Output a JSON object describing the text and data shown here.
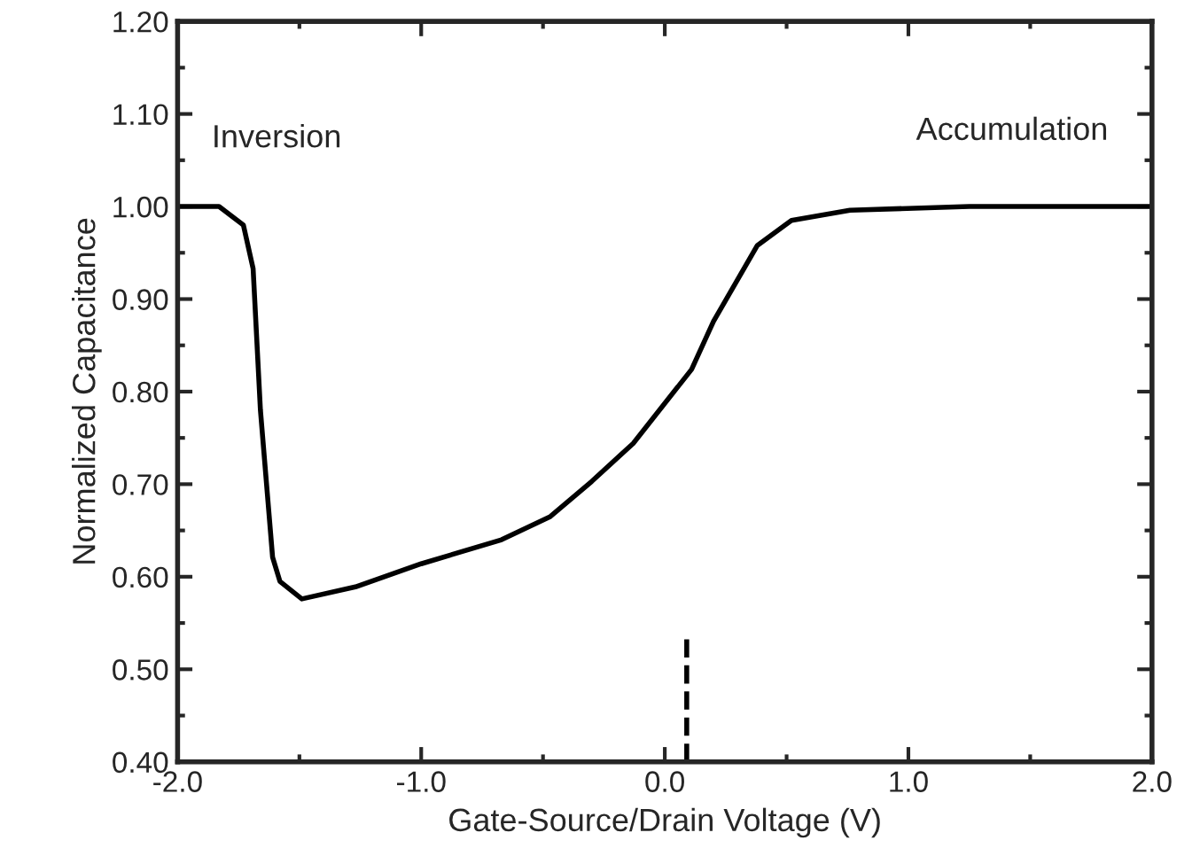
{
  "chart_data": {
    "type": "line",
    "xlabel": "Gate-Source/Drain Voltage (V)",
    "ylabel": "Normalized Capacitance",
    "annotations": [
      "Inversion",
      "Accumulation"
    ],
    "x": [
      -2.0,
      -1.83,
      -1.73,
      -1.69,
      -1.66,
      -1.61,
      -1.58,
      -1.49,
      -1.27,
      -1.0,
      -0.67,
      -0.47,
      -0.3,
      -0.13,
      0.11,
      0.2,
      0.38,
      0.52,
      0.76,
      1.25,
      2.0
    ],
    "series": [
      {
        "color": "#000000",
        "values": [
          1.0,
          1.0,
          0.98,
          0.933,
          0.78,
          0.621,
          0.595,
          0.576,
          0.589,
          0.614,
          0.64,
          0.665,
          0.703,
          0.744,
          0.824,
          0.876,
          0.958,
          0.985,
          0.996,
          1.0,
          1.0
        ]
      }
    ],
    "xlim": [
      -2.0,
      2.0
    ],
    "ylim": [
      0.4,
      1.2
    ],
    "xticks": [
      {
        "value": -2.0,
        "label": "-2.0"
      },
      {
        "value": -1.5,
        "label": null
      },
      {
        "value": -1.0,
        "label": "-1.0"
      },
      {
        "value": -0.5,
        "label": null
      },
      {
        "value": 0.0,
        "label": "0.0"
      },
      {
        "value": 0.5,
        "label": null
      },
      {
        "value": 1.0,
        "label": "1.0"
      },
      {
        "value": 1.5,
        "label": null
      },
      {
        "value": 2.0,
        "label": "2.0"
      }
    ],
    "yticks": [
      {
        "value": 0.4,
        "label": "0.40"
      },
      {
        "value": 0.45,
        "label": null
      },
      {
        "value": 0.5,
        "label": "0.50"
      },
      {
        "value": 0.55,
        "label": null
      },
      {
        "value": 0.6,
        "label": "0.60"
      },
      {
        "value": 0.65,
        "label": null
      },
      {
        "value": 0.7,
        "label": "0.70"
      },
      {
        "value": 0.75,
        "label": null
      },
      {
        "value": 0.8,
        "label": "0.80"
      },
      {
        "value": 0.85,
        "label": null
      },
      {
        "value": 0.9,
        "label": "0.90"
      },
      {
        "value": 0.95,
        "label": null
      },
      {
        "value": 1.0,
        "label": "1.00"
      },
      {
        "value": 1.05,
        "label": null
      },
      {
        "value": 1.1,
        "label": "1.10"
      },
      {
        "value": 1.15,
        "label": null
      },
      {
        "value": 1.2,
        "label": "1.20"
      }
    ],
    "ref_lines": [
      {
        "axis": "x",
        "value": 0.09,
        "color": "#000000",
        "line_style": "dashed"
      }
    ],
    "marker": "none",
    "line_style": "solid",
    "grid": false,
    "legend": false
  }
}
